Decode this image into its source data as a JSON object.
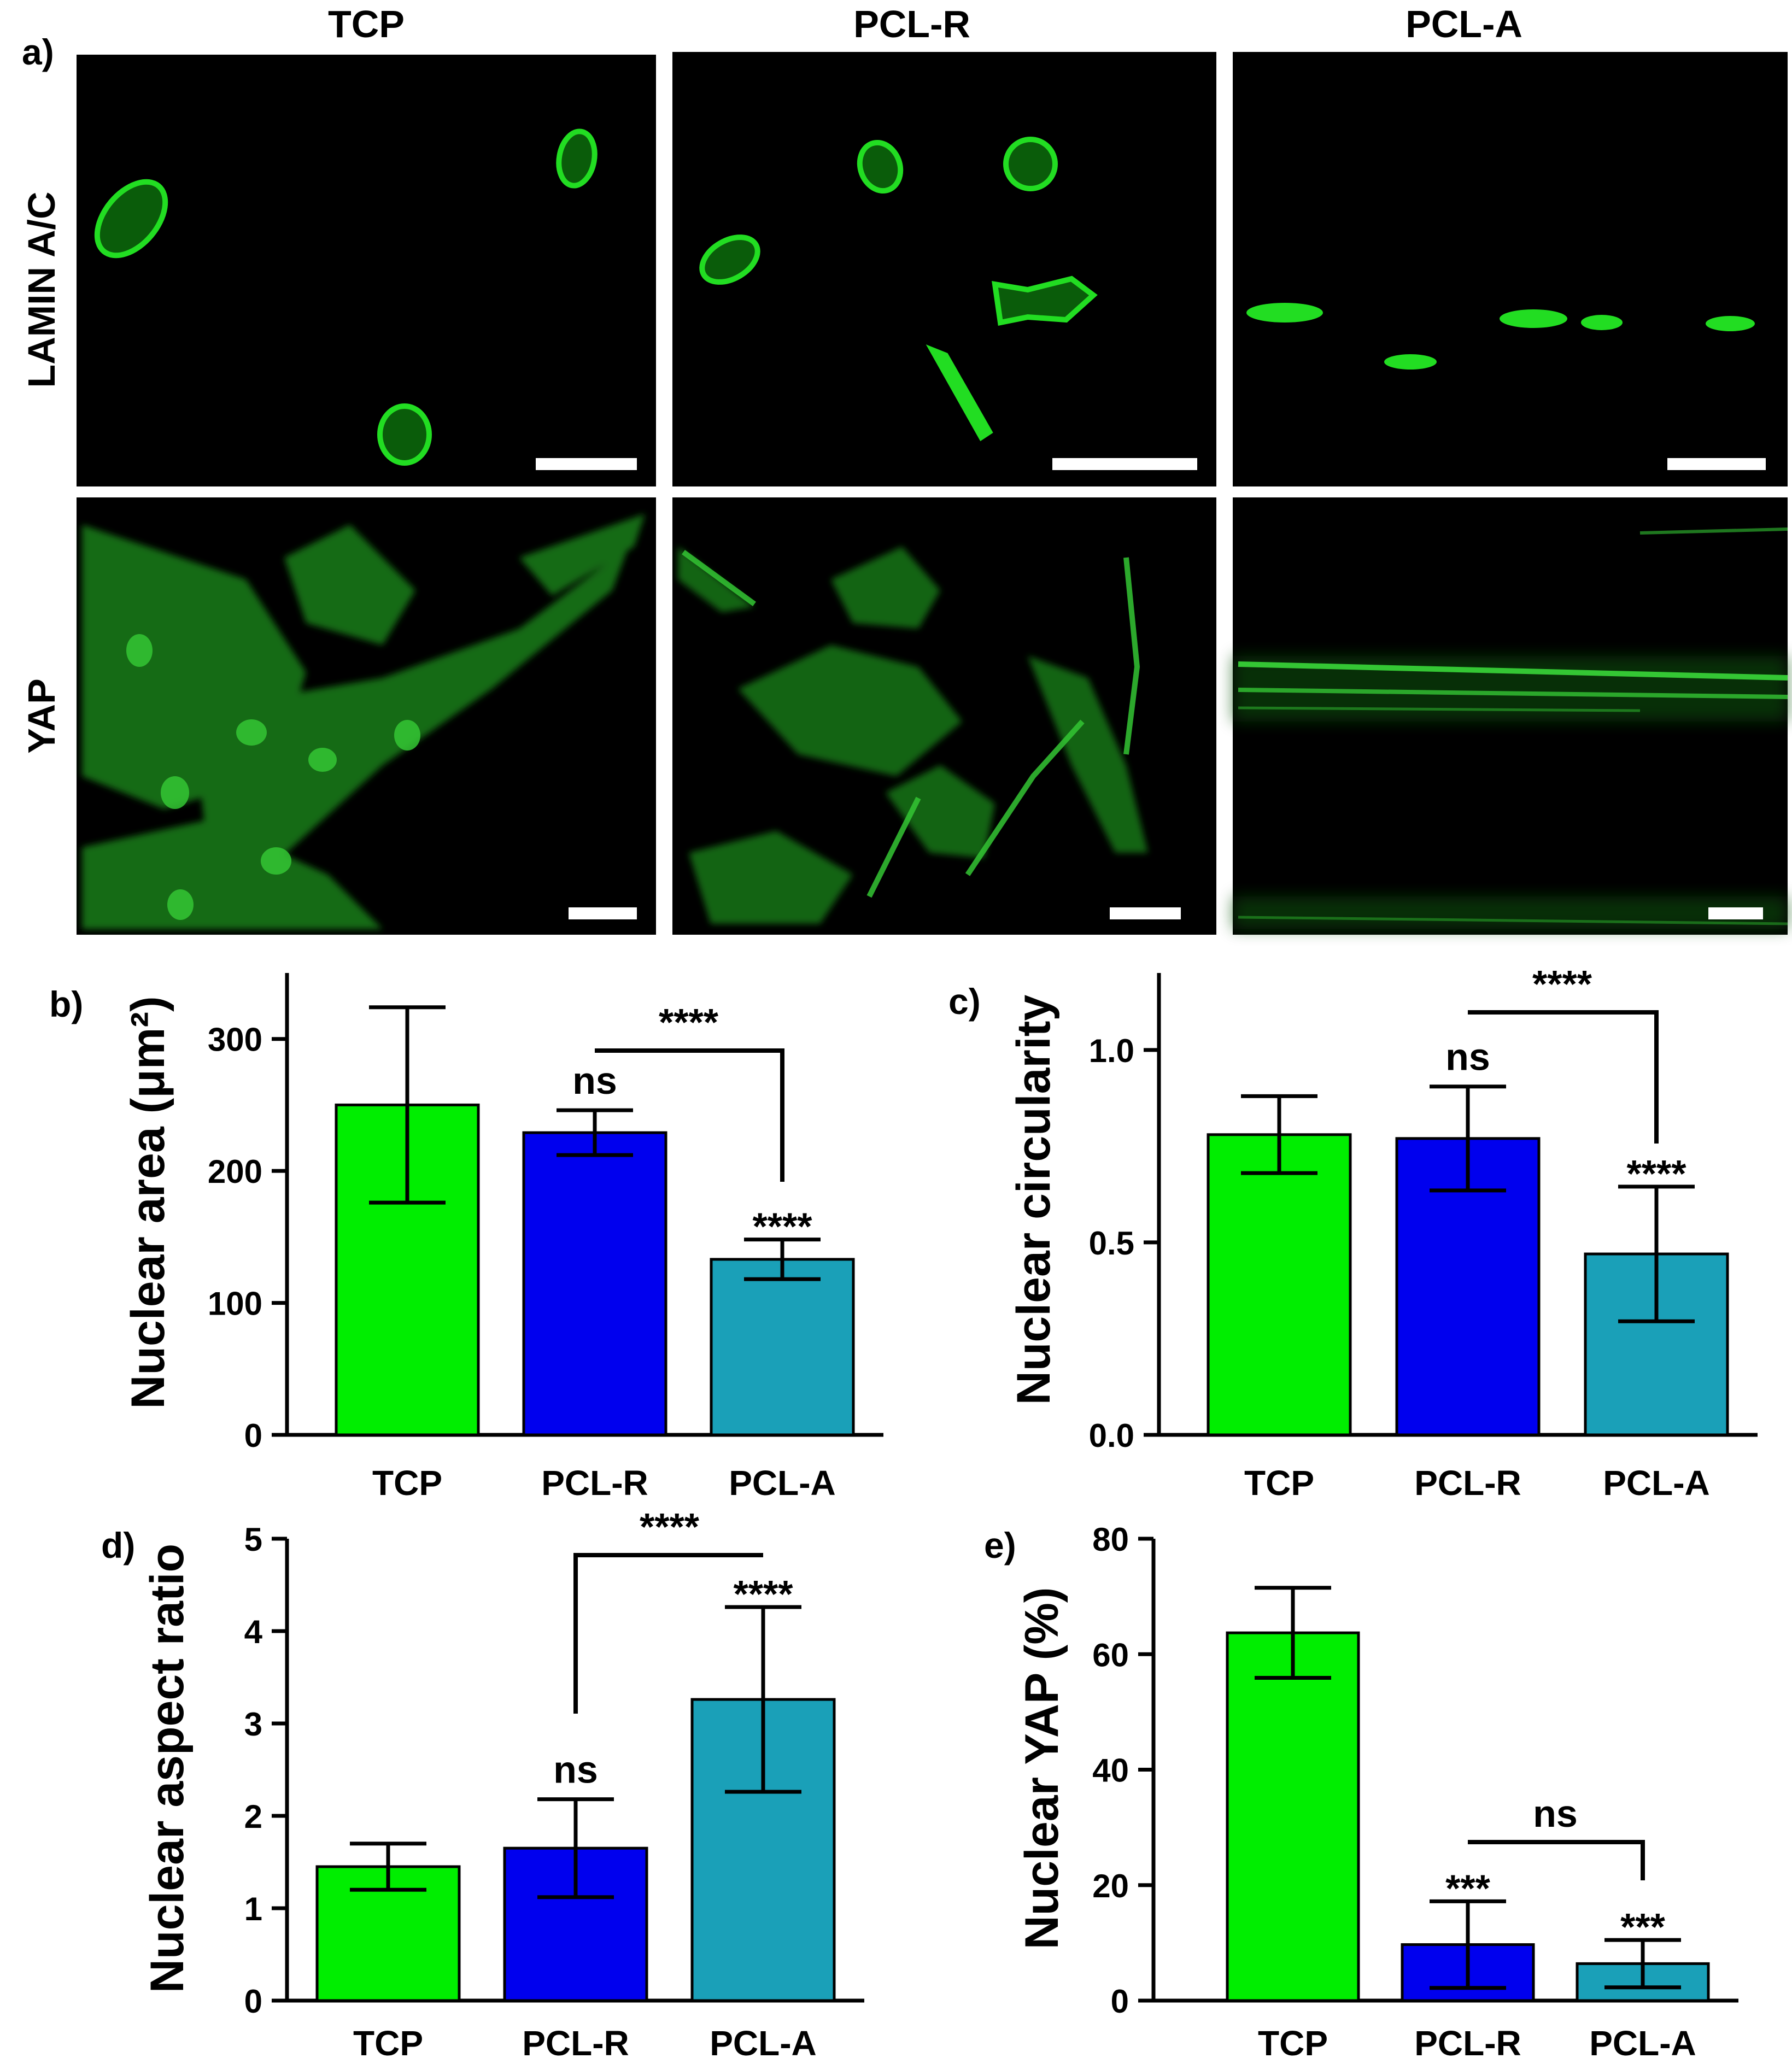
{
  "panel_a": {
    "panel_label": "a)",
    "column_headers": [
      "TCP",
      "PCL-R",
      "PCL-A"
    ],
    "row_labels": [
      "LAMIN A/C",
      "YAP"
    ]
  },
  "colors": {
    "TCP": "#00ee00",
    "PCL-R": "#0000ee",
    "PCL-A": "#1aa0b8",
    "micrograph_bg": "#000000",
    "stain": "#22dd22",
    "scale_bar": "#ffffff"
  },
  "chart_data": [
    {
      "id": "b",
      "panel_label": "b)",
      "type": "bar",
      "categories": [
        "TCP",
        "PCL-R",
        "PCL-A"
      ],
      "values": [
        250,
        229,
        133
      ],
      "error": [
        74,
        17,
        15
      ],
      "ylabel": "Nuclear area (μm²)",
      "ylim": [
        0,
        350
      ],
      "yticks": [
        0,
        100,
        200,
        300
      ],
      "ytick_labels": [
        "0",
        "100",
        "200",
        "300"
      ],
      "annotations": [
        {
          "category": "PCL-R",
          "text": "ns"
        },
        {
          "category": "PCL-A",
          "text": "****"
        }
      ],
      "brackets": [
        {
          "from": "PCL-R",
          "to": "PCL-A",
          "text": "****"
        }
      ]
    },
    {
      "id": "c",
      "panel_label": "c)",
      "type": "bar",
      "categories": [
        "TCP",
        "PCL-R",
        "PCL-A"
      ],
      "values": [
        0.78,
        0.77,
        0.47
      ],
      "error": [
        0.1,
        0.135,
        0.175
      ],
      "ylabel": "Nuclear circularity",
      "ylim": [
        0,
        1.2
      ],
      "yticks": [
        0,
        0.5,
        1.0
      ],
      "ytick_labels": [
        "0.0",
        "0.5",
        "1.0"
      ],
      "annotations": [
        {
          "category": "PCL-R",
          "text": "ns"
        },
        {
          "category": "PCL-A",
          "text": "****"
        }
      ],
      "brackets": [
        {
          "from": "PCL-R",
          "to": "PCL-A",
          "text": "****"
        }
      ]
    },
    {
      "id": "d",
      "panel_label": "d)",
      "type": "bar",
      "categories": [
        "TCP",
        "PCL-R",
        "PCL-A"
      ],
      "values": [
        1.45,
        1.65,
        3.26
      ],
      "error": [
        0.25,
        0.53,
        1.0
      ],
      "ylabel": "Nuclear aspect ratio",
      "ylim": [
        0,
        5
      ],
      "yticks": [
        0,
        1,
        2,
        3,
        4,
        5
      ],
      "ytick_labels": [
        "0",
        "1",
        "2",
        "3",
        "4",
        "5"
      ],
      "annotations": [
        {
          "category": "PCL-R",
          "text": "ns"
        },
        {
          "category": "PCL-A",
          "text": "****"
        }
      ],
      "brackets": [
        {
          "from": "PCL-R",
          "to": "PCL-A",
          "text": "****"
        }
      ]
    },
    {
      "id": "e",
      "panel_label": "e)",
      "type": "bar",
      "categories": [
        "TCP",
        "PCL-R",
        "PCL-A"
      ],
      "values": [
        63.7,
        9.7,
        6.4
      ],
      "error": [
        7.8,
        7.5,
        4.1
      ],
      "ylabel": "Nuclear YAP (%)",
      "ylim": [
        0,
        80
      ],
      "yticks": [
        0,
        20,
        40,
        60,
        80
      ],
      "ytick_labels": [
        "0",
        "20",
        "40",
        "60",
        "80"
      ],
      "annotations": [
        {
          "category": "PCL-R",
          "text": "***"
        },
        {
          "category": "PCL-A",
          "text": "***"
        }
      ],
      "brackets": [
        {
          "from": "PCL-R",
          "to": "PCL-A",
          "text": "ns"
        }
      ]
    }
  ]
}
